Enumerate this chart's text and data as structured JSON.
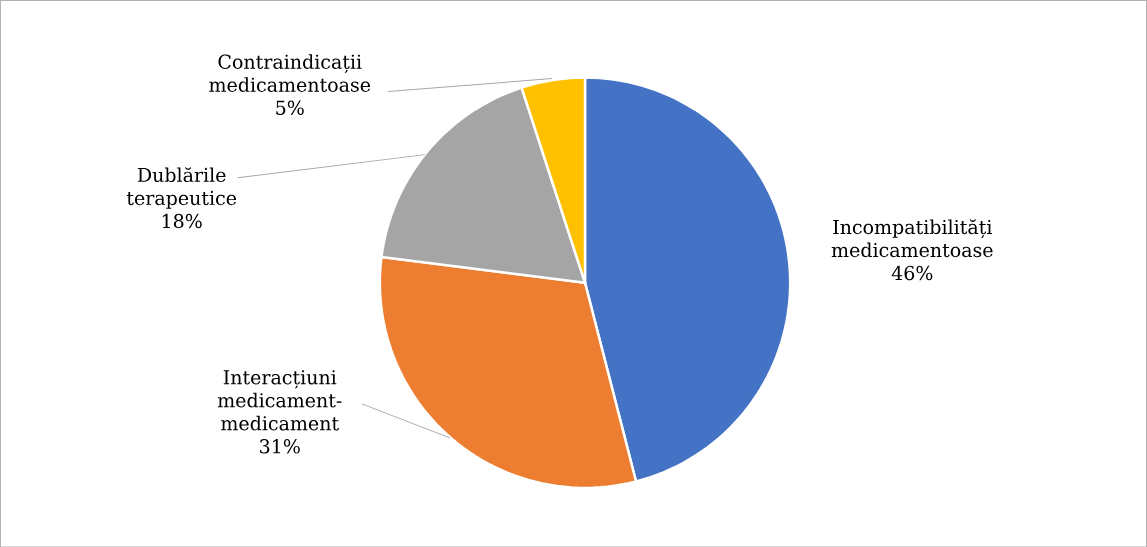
{
  "chart_data": {
    "type": "pie",
    "categories": [
      "Incompatibilități medicamentoase",
      "Interacțiuni medicament-medicament",
      "Dublările terapeutice",
      "Contraindicații medicamentoase"
    ],
    "values": [
      46,
      31,
      18,
      5
    ],
    "value_labels": [
      "46%",
      "31%",
      "18%",
      "5%"
    ],
    "colors": [
      "#4472c4",
      "#ed7d31",
      "#a5a5a5",
      "#ffc000"
    ]
  }
}
